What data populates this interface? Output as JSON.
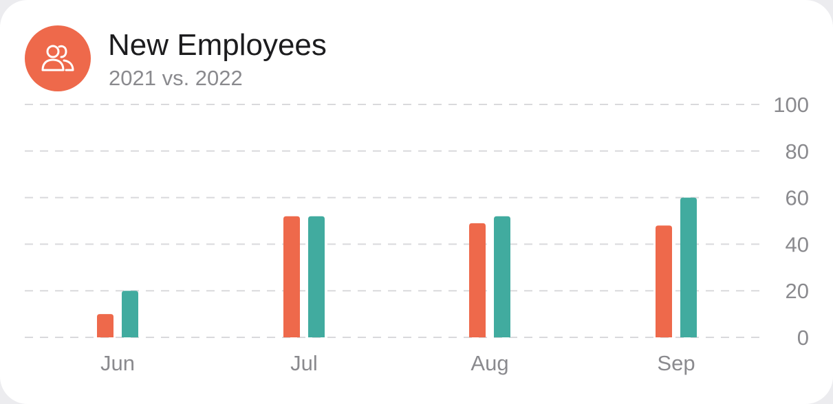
{
  "header": {
    "title": "New Employees",
    "subtitle": "2021 vs. 2022",
    "icon": "users-icon"
  },
  "colors": {
    "series_2021": "#ee694b",
    "series_2022": "#41ab9f",
    "icon_bg": "#ee694b"
  },
  "chart_data": {
    "type": "bar",
    "categories": [
      "Jun",
      "Jul",
      "Aug",
      "Sep"
    ],
    "series": [
      {
        "values": [
          10,
          52,
          49,
          48
        ]
      },
      {
        "values": [
          20,
          52,
          52,
          60
        ]
      }
    ],
    "ylim": [
      0,
      100
    ],
    "yticks": [
      0,
      20,
      40,
      60,
      80,
      100
    ],
    "grid": true,
    "y_axis_position": "right"
  }
}
